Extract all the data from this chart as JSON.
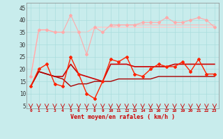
{
  "background_color": "#c8ecec",
  "grid_color": "#aadddd",
  "xlabel": "Vent moyen/en rafales ( km/h )",
  "ylabel_ticks": [
    5,
    10,
    15,
    20,
    25,
    30,
    35,
    40,
    45
  ],
  "x_values": [
    0,
    1,
    2,
    3,
    4,
    5,
    6,
    7,
    8,
    9,
    10,
    11,
    12,
    13,
    14,
    15,
    16,
    17,
    18,
    19,
    20,
    21,
    22,
    23
  ],
  "series": [
    {
      "data": [
        17,
        36,
        36,
        35,
        35,
        42,
        35,
        26,
        37,
        35,
        38,
        38,
        38,
        38,
        39,
        39,
        39,
        41,
        39,
        39,
        40,
        41,
        40,
        37
      ],
      "color": "#ffaaaa",
      "linewidth": 0.8,
      "marker": "D",
      "markersize": 2.0,
      "zorder": 2
    },
    {
      "data": [
        17,
        36,
        36,
        35,
        35,
        35,
        35,
        35,
        37,
        37,
        37,
        38,
        38,
        38,
        38,
        38,
        38,
        38,
        38,
        38,
        38,
        38,
        38,
        38
      ],
      "color": "#ffbbbb",
      "linewidth": 0.9,
      "marker": null,
      "markersize": 0,
      "zorder": 1
    },
    {
      "data": [
        17,
        36,
        36,
        35,
        35,
        35,
        35,
        35,
        37,
        37,
        37,
        37,
        37,
        37,
        37,
        37,
        37,
        37,
        37,
        37,
        37,
        37,
        37,
        37
      ],
      "color": "#ffcccc",
      "linewidth": 0.9,
      "marker": null,
      "markersize": 0,
      "zorder": 1
    },
    {
      "data": [
        13,
        20,
        22,
        14,
        13,
        25,
        18,
        10,
        8,
        15,
        24,
        23,
        25,
        18,
        17,
        20,
        22,
        21,
        21,
        23,
        19,
        24,
        18,
        18
      ],
      "color": "#ff2200",
      "linewidth": 1.0,
      "marker": "D",
      "markersize": 2.0,
      "zorder": 4
    },
    {
      "data": [
        13,
        19,
        18,
        17,
        17,
        22,
        18,
        17,
        16,
        15,
        22,
        22,
        22,
        21,
        21,
        21,
        21,
        21,
        22,
        22,
        22,
        22,
        22,
        22
      ],
      "color": "#cc0000",
      "linewidth": 1.2,
      "marker": null,
      "markersize": 0,
      "zorder": 3
    },
    {
      "data": [
        13,
        19,
        18,
        17,
        16,
        13,
        14,
        14,
        15,
        15,
        15,
        16,
        16,
        16,
        16,
        16,
        17,
        17,
        17,
        17,
        17,
        17,
        17,
        17
      ],
      "color": "#aa0000",
      "linewidth": 1.0,
      "marker": null,
      "markersize": 0,
      "zorder": 3
    }
  ],
  "arrow_color": "#cc0000",
  "ylim": [
    4.0,
    47.0
  ],
  "xlim": [
    -0.5,
    23.5
  ],
  "figsize": [
    3.2,
    2.0
  ],
  "dpi": 100
}
